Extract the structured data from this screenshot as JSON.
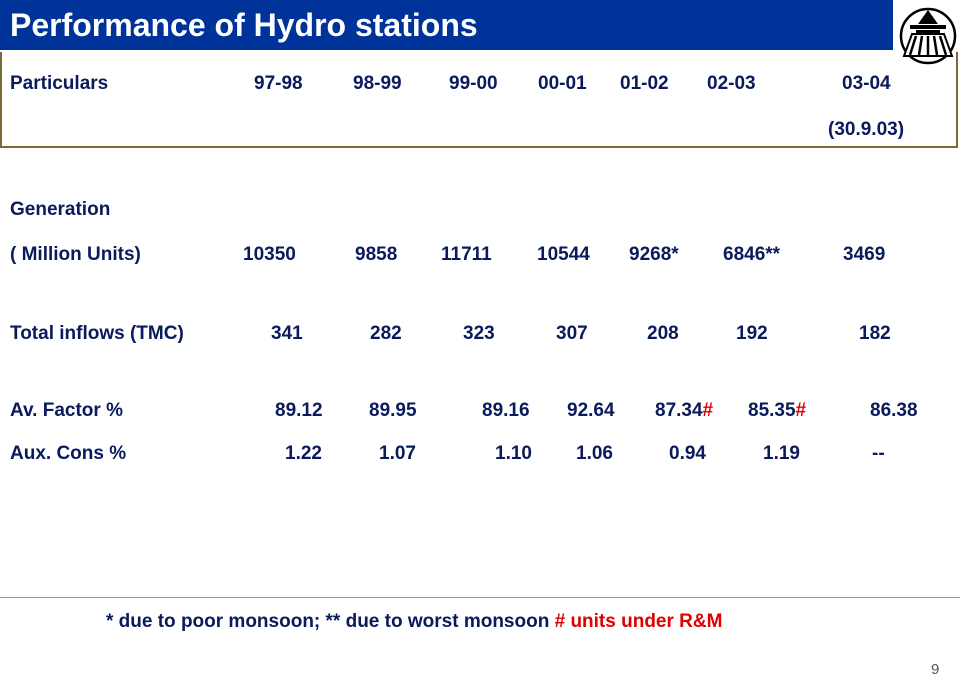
{
  "title": "Performance of Hydro stations",
  "logo": {
    "icon": "station-emblem-icon"
  },
  "header": {
    "particulars": "Particulars",
    "years": [
      "97-98",
      "98-99",
      "99-00",
      "00-01",
      "01-02",
      "02-03",
      "03-04"
    ],
    "year_note": "(30.9.03)"
  },
  "rows": {
    "generation_label": "Generation",
    "generation_unit": "( Million Units)",
    "generation": [
      "10350",
      "9858",
      "11711",
      "10544",
      "9268*",
      "6846**",
      "3469"
    ],
    "inflows_label": "Total inflows (TMC)",
    "inflows": [
      "341",
      "282",
      "323",
      "307",
      "208",
      "192",
      "182"
    ],
    "av_factor_label": "Av.  Factor %",
    "av_factor": [
      {
        "value": "89.12",
        "mark": ""
      },
      {
        "value": "89.95",
        "mark": ""
      },
      {
        "value": "89.16",
        "mark": ""
      },
      {
        "value": "92.64",
        "mark": ""
      },
      {
        "value": "87.34",
        "mark": "#"
      },
      {
        "value": "85.35",
        "mark": "#"
      },
      {
        "value": "86.38",
        "mark": ""
      }
    ],
    "aux_label": "Aux. Cons %",
    "aux": [
      "1.22",
      "1.07",
      "1.10",
      "1.06",
      "0.94",
      "1.19",
      "--"
    ]
  },
  "footnote": {
    "part1": "* due to poor monsoon; ** due to worst monsoon  ",
    "part2": "#  units under R&M"
  },
  "page_number": "9",
  "colors": {
    "title_bar": "#003399",
    "text": "#0a1a5c",
    "accent_red": "#e00000"
  }
}
